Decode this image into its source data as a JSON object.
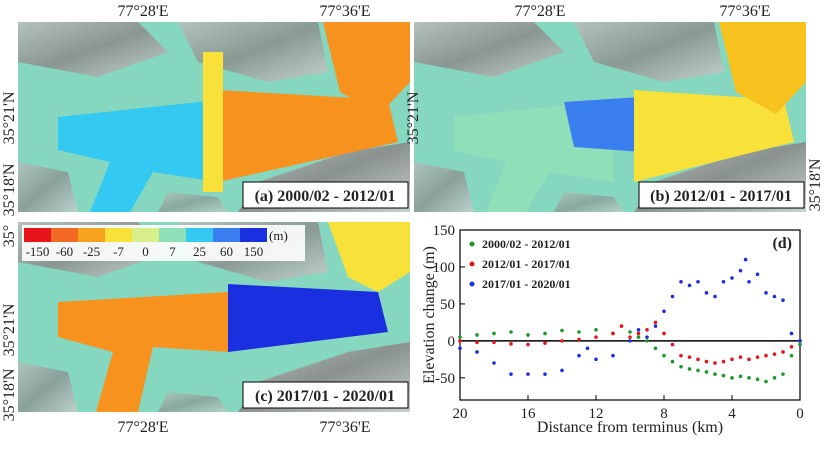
{
  "maps": {
    "panels": [
      {
        "label": "(a) 2000/02 - 2012/01",
        "lon_labels_top": [
          "77°28'E",
          "77°36'E"
        ],
        "lat_labels": [
          "35°21'N",
          "35°18'N"
        ]
      },
      {
        "label": "(b) 2012/01 - 2017/01",
        "lon_labels_top": [
          "77°28'E",
          "77°36'E"
        ],
        "lat_labels": [
          "35°21'N",
          "35°18'N"
        ]
      },
      {
        "label": "(c) 2017/01 - 2020/01",
        "lon_labels_bottom": [
          "77°28'E",
          "77°36'E"
        ],
        "lat_labels": [
          "35°",
          "35°21'N",
          "35°18'N"
        ]
      }
    ],
    "colorbar": {
      "unit": "(m)",
      "ticks": [
        -150,
        -60,
        -25,
        -7,
        0,
        7,
        25,
        60,
        150
      ],
      "colors": [
        "#e8141c",
        "#f26a21",
        "#f7a21e",
        "#f8e23a",
        "#d6ef8a",
        "#8fe0b8",
        "#33c9f0",
        "#3a7ef0",
        "#1a2fe0"
      ]
    }
  },
  "chart_data": {
    "type": "scatter",
    "annotation": "(d)",
    "x_label": "Distance from terminus (km)",
    "y_label": "Elevation change (m)",
    "xlim": [
      20,
      0
    ],
    "xticks": [
      20,
      16,
      12,
      8,
      4,
      0
    ],
    "ylim": [
      -80,
      150
    ],
    "yticks": [
      -50,
      0,
      50,
      100,
      150
    ],
    "legend": "top-left",
    "series": [
      {
        "name": "2000/02 - 2012/01",
        "color": "#1a9a2a",
        "x": [
          20,
          19,
          18,
          17,
          16,
          15,
          14,
          13,
          12,
          11,
          10,
          9.5,
          9,
          8.5,
          8,
          7.5,
          7,
          6.5,
          6,
          5.5,
          5,
          4.5,
          4,
          3.5,
          3,
          2.5,
          2,
          1.5,
          1,
          0.5,
          0
        ],
        "values": [
          5,
          8,
          10,
          12,
          8,
          10,
          14,
          12,
          15,
          10,
          12,
          5,
          0,
          -10,
          -20,
          -28,
          -35,
          -38,
          -40,
          -42,
          -45,
          -47,
          -50,
          -48,
          -50,
          -52,
          -55,
          -50,
          -45,
          -20,
          -5
        ]
      },
      {
        "name": "2012/01 - 2017/01",
        "color": "#e8141c",
        "x": [
          20,
          19,
          18,
          17,
          16,
          15,
          14,
          13,
          12,
          11,
          10.5,
          10,
          9.5,
          9,
          8.5,
          8,
          7.5,
          7,
          6.5,
          6,
          5.5,
          5,
          4.5,
          4,
          3.5,
          3,
          2.5,
          2,
          1.5,
          1,
          0.5,
          0
        ],
        "values": [
          0,
          -2,
          -2,
          -4,
          -5,
          -3,
          0,
          2,
          5,
          10,
          20,
          5,
          10,
          15,
          25,
          10,
          -5,
          -20,
          -22,
          -25,
          -28,
          -30,
          -28,
          -25,
          -22,
          -25,
          -22,
          -20,
          -18,
          -15,
          -8,
          0
        ]
      },
      {
        "name": "2017/01 - 2020/01",
        "color": "#1a2fe0",
        "x": [
          20,
          19,
          18,
          17,
          16,
          15,
          14,
          13,
          12.5,
          12,
          11,
          10,
          9.5,
          9,
          8.5,
          8,
          7.5,
          7,
          6.5,
          6,
          5.5,
          5,
          4.5,
          4,
          3.5,
          3.2,
          3,
          2.5,
          2,
          1.5,
          1,
          0.5,
          0
        ],
        "values": [
          -10,
          -15,
          -30,
          -45,
          -45,
          -45,
          -40,
          -20,
          -10,
          -25,
          -20,
          0,
          15,
          5,
          20,
          40,
          60,
          80,
          75,
          80,
          65,
          60,
          80,
          85,
          95,
          110,
          80,
          90,
          65,
          60,
          55,
          10,
          0
        ]
      }
    ]
  }
}
